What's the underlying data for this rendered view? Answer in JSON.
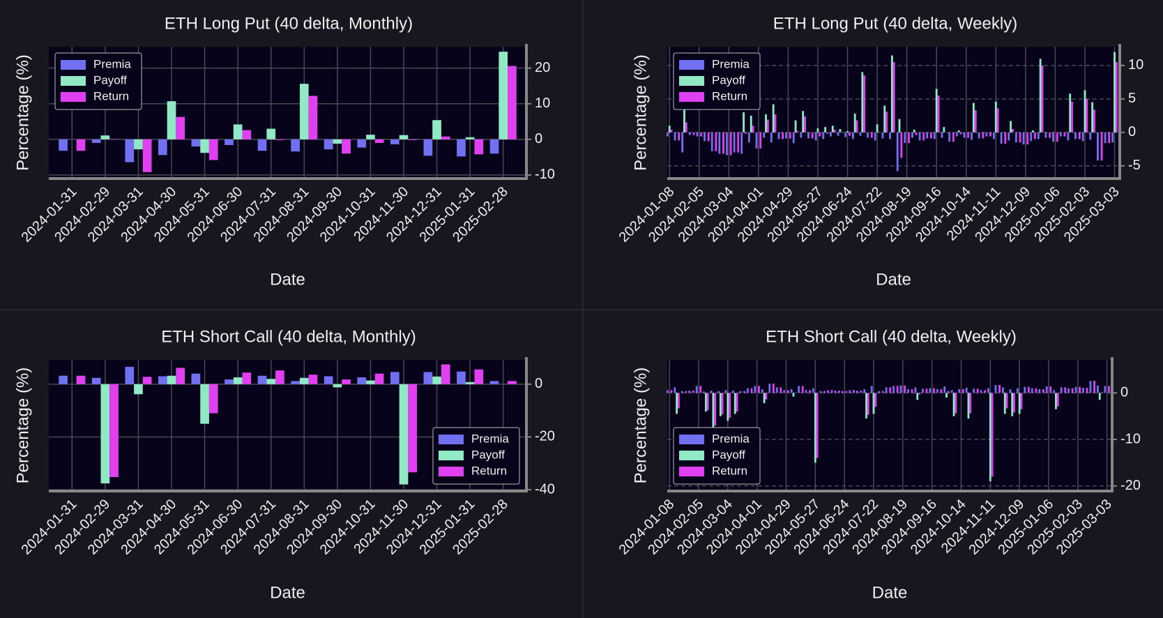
{
  "chart_data": [
    {
      "type": "bar",
      "title": "ETH Long Put (40 delta, Monthly)",
      "xlabel": "Date",
      "ylabel": "Percentage (%)",
      "categories": [
        "2024-01-31",
        "2024-02-29",
        "2024-03-31",
        "2024-04-30",
        "2024-05-31",
        "2024-06-30",
        "2024-07-31",
        "2024-08-31",
        "2024-09-30",
        "2024-10-31",
        "2024-11-30",
        "2024-12-31",
        "2025-01-31",
        "2025-02-28"
      ],
      "series": [
        {
          "name": "Premia",
          "color": "#7070f0",
          "values": [
            -3.2,
            -1.0,
            -6.4,
            -4.4,
            -2.0,
            -1.6,
            -3.2,
            -3.4,
            -2.8,
            -2.3,
            -1.4,
            -4.6,
            -4.8,
            -4.0
          ]
        },
        {
          "name": "Payoff",
          "color": "#90e8c4",
          "values": [
            0,
            1.1,
            -2.8,
            10.7,
            -3.8,
            4.2,
            3.0,
            15.6,
            -1.2,
            1.3,
            1.2,
            5.4,
            0.6,
            24.6
          ]
        },
        {
          "name": "Return",
          "color": "#e040f0",
          "values": [
            -3.2,
            0.1,
            -9.2,
            6.3,
            -5.8,
            2.6,
            -0.2,
            12.2,
            -4.0,
            -1.0,
            -0.2,
            0.8,
            -4.2,
            20.6
          ]
        }
      ],
      "ylim": [
        -11,
        26
      ],
      "yticks": [
        -10,
        0,
        10,
        20
      ],
      "grid": true,
      "grid_linestyle": "solid",
      "legend": "upper left"
    },
    {
      "type": "bar",
      "title": "ETH Long Put (40 delta, Weekly)",
      "xlabel": "Date",
      "ylabel": "Percentage (%)",
      "categories": [
        "2024-01-08",
        null,
        null,
        null,
        "2024-02-05",
        null,
        null,
        null,
        "2024-03-04",
        null,
        null,
        null,
        "2024-04-01",
        null,
        null,
        null,
        "2024-04-29",
        null,
        null,
        null,
        "2024-05-27",
        null,
        null,
        null,
        "2024-06-24",
        null,
        null,
        null,
        "2024-07-22",
        null,
        null,
        null,
        "2024-08-19",
        null,
        null,
        null,
        "2024-09-16",
        null,
        null,
        null,
        "2024-10-14",
        null,
        null,
        null,
        "2024-11-11",
        null,
        null,
        null,
        "2024-12-09",
        null,
        null,
        null,
        "2025-01-06",
        null,
        null,
        null,
        "2025-02-03",
        null,
        null,
        null,
        "2025-03-03"
      ],
      "series": [
        {
          "name": "Premia",
          "color": "#7070f0",
          "values": [
            -0.6,
            -1.2,
            -3.0,
            -0.4,
            -0.6,
            -1.3,
            -2.8,
            -3.2,
            -3.4,
            -3.0,
            -3.2,
            -1.5,
            -2.4,
            -0.8,
            -1.5,
            -1.0,
            -0.9,
            -1.6,
            -0.8,
            -0.9,
            -1.2,
            -1.0,
            -0.6,
            -0.5,
            -0.7,
            -1.0,
            -0.5,
            -0.8,
            -1.2,
            -0.9,
            -1.0,
            -5.8,
            -1.6,
            -0.8,
            -1.2,
            -0.9,
            -1.0,
            -0.8,
            -1.4,
            -0.6,
            -0.8,
            -1.1,
            -0.9,
            -0.6,
            -1.0,
            -1.7,
            -1.2,
            -1.5,
            -1.8,
            -1.3,
            -1.0,
            -0.8,
            -1.4,
            -0.6,
            -1.2,
            -1.0,
            -1.3,
            -1.1,
            -4.2,
            -1.6,
            -1.5
          ]
        },
        {
          "name": "Payoff",
          "color": "#90e8c4",
          "values": [
            1.0,
            0,
            4.5,
            0,
            0,
            0,
            0,
            0,
            0,
            0,
            3.0,
            2.5,
            0,
            2.7,
            4.2,
            0,
            0,
            1.8,
            3.2,
            0,
            0.6,
            0.8,
            1.0,
            0.5,
            0.2,
            2.8,
            9.0,
            0,
            1.2,
            4.0,
            11.5,
            2.0,
            0,
            0.4,
            0,
            0,
            6.5,
            0.8,
            0,
            0.3,
            0,
            4.4,
            0,
            0,
            4.6,
            0,
            1.7,
            0,
            0,
            0.3,
            11.0,
            0,
            0,
            0,
            5.8,
            0,
            6.3,
            4.5,
            0,
            0,
            12.0
          ]
        },
        {
          "name": "Return",
          "color": "#e040f0",
          "values": [
            0.4,
            -1.2,
            1.5,
            -0.4,
            -0.6,
            -1.3,
            -2.8,
            -3.2,
            -3.4,
            -3.0,
            -0.2,
            1.0,
            -2.4,
            1.9,
            2.7,
            -1.0,
            -0.9,
            0.2,
            2.4,
            -0.9,
            -0.6,
            -0.2,
            0.4,
            0,
            -0.5,
            1.8,
            8.5,
            -0.8,
            0,
            3.1,
            10.5,
            -3.8,
            -1.6,
            -0.4,
            -1.2,
            -0.9,
            5.5,
            0,
            -1.4,
            -0.3,
            -0.8,
            3.3,
            -0.9,
            -0.6,
            3.6,
            -1.7,
            0.5,
            -1.5,
            -1.8,
            -1.0,
            10.0,
            -0.8,
            -1.4,
            -0.6,
            4.6,
            -1.0,
            5.0,
            3.4,
            -4.2,
            -1.6,
            10.5
          ]
        }
      ],
      "ylim": [
        -6.9,
        12.8
      ],
      "yticks": [
        -5,
        0,
        5,
        10
      ],
      "grid": true,
      "grid_linestyle": "dashed",
      "legend": "upper left"
    },
    {
      "type": "bar",
      "title": "ETH Short Call (40 delta, Monthly)",
      "xlabel": "Date",
      "ylabel": "Percentage (%)",
      "categories": [
        "2024-01-31",
        "2024-02-29",
        "2024-03-31",
        "2024-04-30",
        "2024-05-31",
        "2024-06-30",
        "2024-07-31",
        "2024-08-31",
        "2024-09-30",
        "2024-10-31",
        "2024-11-30",
        "2024-12-31",
        "2025-01-31",
        "2025-02-28"
      ],
      "series": [
        {
          "name": "Premia",
          "color": "#7070f0",
          "values": [
            3.2,
            2.4,
            6.6,
            3.0,
            4.0,
            1.8,
            3.2,
            1.2,
            3.0,
            2.6,
            4.6,
            4.6,
            4.8,
            1.2
          ]
        },
        {
          "name": "Payoff",
          "color": "#90e8c4",
          "values": [
            0,
            -37.6,
            -3.8,
            3.2,
            -15.0,
            2.6,
            2.0,
            2.4,
            -1.2,
            1.4,
            -38.0,
            2.9,
            0.8,
            0
          ]
        },
        {
          "name": "Return",
          "color": "#e040f0",
          "values": [
            3.2,
            -35.2,
            2.8,
            6.2,
            -11.0,
            4.4,
            5.2,
            3.6,
            1.8,
            4.0,
            -33.4,
            7.5,
            5.6,
            1.2
          ]
        }
      ],
      "ylim": [
        -40.5,
        9.2
      ],
      "yticks": [
        -40,
        -20,
        0
      ],
      "grid": true,
      "grid_linestyle": "solid",
      "legend": "lower right"
    },
    {
      "type": "bar",
      "title": "ETH Short Call (40 delta, Weekly)",
      "xlabel": "Date",
      "ylabel": "Percentage (%)",
      "categories": [
        "2024-01-08",
        null,
        null,
        null,
        "2024-02-05",
        null,
        null,
        null,
        "2024-03-04",
        null,
        null,
        null,
        "2024-04-01",
        null,
        null,
        null,
        "2024-04-29",
        null,
        null,
        null,
        "2024-05-27",
        null,
        null,
        null,
        "2024-06-24",
        null,
        null,
        null,
        "2024-07-22",
        null,
        null,
        null,
        "2024-08-19",
        null,
        null,
        null,
        "2024-09-16",
        null,
        null,
        null,
        "2024-10-14",
        null,
        null,
        null,
        "2024-11-11",
        null,
        null,
        null,
        "2024-12-09",
        null,
        null,
        null,
        "2025-01-06",
        null,
        null,
        null,
        "2025-02-03",
        null,
        null,
        null,
        "2025-03-03"
      ],
      "series": [
        {
          "name": "Premia",
          "color": "#7070f0",
          "values": [
            0.6,
            1.2,
            0.4,
            0.5,
            1.5,
            0.3,
            0.5,
            0.4,
            0.6,
            0.5,
            0.4,
            1.0,
            1.5,
            0.8,
            2.0,
            1.2,
            0.6,
            0.8,
            1.5,
            0.6,
            1.0,
            0.4,
            0.6,
            0.5,
            0.4,
            0.6,
            0.5,
            0.8,
            1.5,
            0.4,
            1.2,
            1.5,
            1.6,
            0.8,
            1.2,
            0.9,
            1.0,
            0.8,
            1.4,
            0.6,
            0.8,
            1.1,
            0.9,
            0.6,
            1.0,
            1.7,
            1.2,
            0.8,
            1.0,
            1.3,
            1.0,
            0.8,
            1.4,
            0.6,
            1.2,
            1.0,
            1.3,
            1.1,
            2.6,
            1.6,
            1.5
          ]
        },
        {
          "name": "Payoff",
          "color": "#90e8c4",
          "values": [
            0,
            -4.5,
            0,
            0,
            0,
            -4.0,
            -7.5,
            -5.0,
            -6.0,
            -4.5,
            0,
            0,
            0,
            -2.2,
            0,
            0,
            0,
            -0.8,
            0,
            0,
            -15.0,
            0,
            0,
            0,
            0,
            0,
            0,
            -5.5,
            -4.5,
            0,
            0,
            0,
            0,
            0,
            -1.5,
            0,
            0,
            0,
            -1.0,
            -5.0,
            0,
            -5.5,
            0,
            0,
            -19.0,
            0,
            -4.5,
            -5.0,
            -4.5,
            0,
            0,
            0,
            0,
            -3.5,
            0,
            0,
            0,
            0,
            0,
            -1.5,
            0
          ]
        },
        {
          "name": "Return",
          "color": "#e040f0",
          "values": [
            0.6,
            -3.3,
            0.4,
            0.5,
            1.5,
            -3.7,
            -7.0,
            -4.6,
            -5.4,
            -4.0,
            0.4,
            1.0,
            1.5,
            -1.4,
            2.0,
            1.2,
            0.6,
            0,
            1.5,
            0.6,
            -14.0,
            0.4,
            0.6,
            0.5,
            0.4,
            0.6,
            0.5,
            -4.7,
            -3.0,
            0.4,
            1.2,
            1.5,
            1.6,
            0.8,
            -0.3,
            0.9,
            1.0,
            0.8,
            0.4,
            -4.4,
            0.8,
            -4.4,
            0.9,
            0.6,
            -18.0,
            1.7,
            -3.3,
            -4.2,
            -3.5,
            1.3,
            1.0,
            0.8,
            1.4,
            -2.9,
            1.2,
            1.0,
            1.3,
            1.1,
            2.6,
            0.1,
            1.5
          ]
        }
      ],
      "ylim": [
        -21.1,
        7.1
      ],
      "yticks": [
        -20,
        -10,
        0
      ],
      "grid": true,
      "grid_linestyle": "dashed",
      "legend": "lower left"
    }
  ]
}
